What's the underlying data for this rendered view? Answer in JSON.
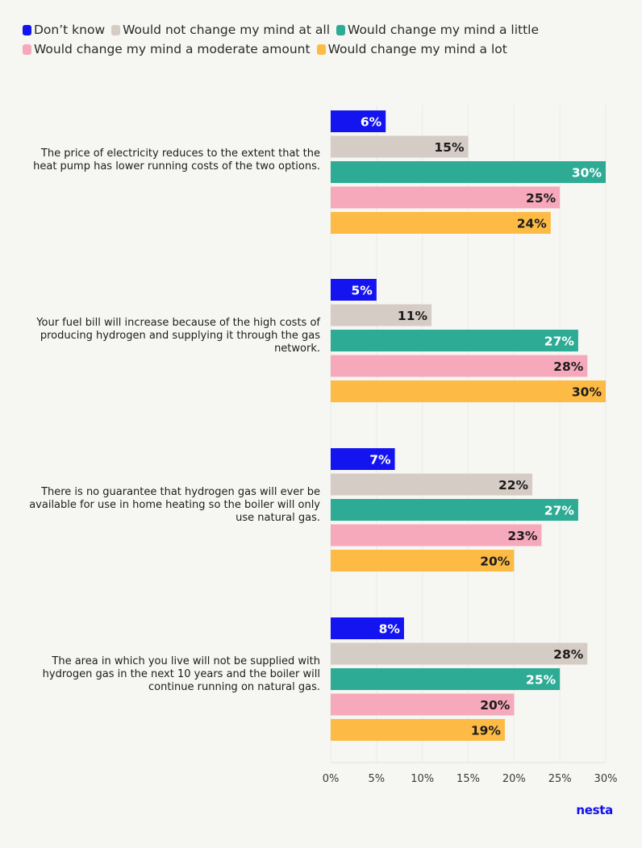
{
  "chart_data": {
    "type": "bar",
    "orientation": "horizontal",
    "categories": [
      "The price of electricity reduces to the extent that the heat pump has lower running costs of the two options.",
      "Your fuel bill will increase because of the high costs of producing hydrogen and supplying it through the gas network.",
      "There is no guarantee that hydrogen gas will ever be available for use in home heating so the boiler will only use natural gas.",
      "The area in which you live will not be supplied with hydrogen gas in the next 10 years and the boiler will continue running on natural gas."
    ],
    "series": [
      {
        "name": "Don’t know",
        "color": "#1414f0",
        "values": [
          6,
          5,
          7,
          8
        ],
        "label_color": "#ffffff"
      },
      {
        "name": "Would not change my mind at all",
        "color": "#d6ccc6",
        "values": [
          15,
          11,
          22,
          28
        ],
        "label_color": "#1c1c1c"
      },
      {
        "name": "Would change my mind a little",
        "color": "#2eab94",
        "values": [
          30,
          27,
          27,
          25
        ],
        "label_color": "#ffffff"
      },
      {
        "name": "Would change my mind a moderate amount",
        "color": "#f5a9bb",
        "values": [
          25,
          28,
          23,
          20
        ],
        "label_color": "#1c1c1c"
      },
      {
        "name": "Would change my mind a lot",
        "color": "#fdba44",
        "values": [
          24,
          30,
          20,
          19
        ],
        "label_color": "#1c1c1c"
      }
    ],
    "xlim": [
      0,
      30
    ],
    "xticks": [
      0,
      5,
      10,
      15,
      20,
      25,
      30
    ],
    "value_suffix": "%",
    "legend_position": "top-left",
    "grid": true
  },
  "brand": "nesta"
}
